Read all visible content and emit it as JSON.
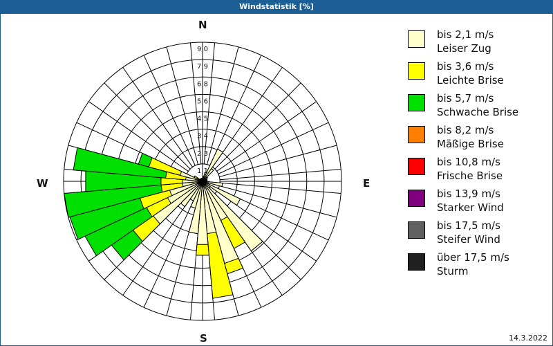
{
  "header": {
    "title": "Windstatistik [%]"
  },
  "compass": {
    "n": "N",
    "e": "E",
    "s": "S",
    "w": "W"
  },
  "footer": {
    "date": "14.3.2022"
  },
  "legend": [
    {
      "line1": "bis 2,1 m/s",
      "line2": "Leiser Zug",
      "color": "#ffffcc"
    },
    {
      "line1": "bis 3,6 m/s",
      "line2": "Leichte Brise",
      "color": "#ffff00"
    },
    {
      "line1": "bis 5,7 m/s",
      "line2": "Schwache Brise",
      "color": "#00e000"
    },
    {
      "line1": "bis 8,2 m/s",
      "line2": "Mäßige Brise",
      "color": "#ff8000"
    },
    {
      "line1": "bis 10,8 m/s",
      "line2": "Frische Brise",
      "color": "#ff0000"
    },
    {
      "line1": "bis 13,9 m/s",
      "line2": "Starker Wind",
      "color": "#800080"
    },
    {
      "line1": "bis 17,5 m/s",
      "line2": "Steifer Wind",
      "color": "#606060"
    },
    {
      "line1": "über 17,5 m/s",
      "line2": "Sturm",
      "color": "#202020"
    }
  ],
  "chart_data": {
    "type": "polar-stacked-bar",
    "title": "Windstatistik [%]",
    "radial_ticks": [
      "1,1",
      "2,3",
      "3,4",
      "4,5",
      "5,6",
      "6,8",
      "7,9",
      "9,0"
    ],
    "rmax": 9.0,
    "sector_width_deg": 10,
    "series": [
      "bis 2,1 m/s",
      "bis 3,6 m/s",
      "bis 5,7 m/s"
    ],
    "directions": [
      0,
      10,
      20,
      30,
      40,
      50,
      60,
      70,
      80,
      90,
      100,
      110,
      120,
      130,
      140,
      150,
      160,
      170,
      180,
      190,
      200,
      210,
      220,
      230,
      240,
      250,
      260,
      270,
      280,
      290,
      300,
      310,
      320,
      330,
      340,
      350
    ],
    "cumulative_values": [
      [
        0.2,
        0.2,
        0.2
      ],
      [
        0.3,
        0.3,
        0.3
      ],
      [
        0.6,
        0.6,
        0.6
      ],
      [
        2.3,
        2.3,
        2.3
      ],
      [
        1.0,
        1.0,
        1.0
      ],
      [
        0.4,
        0.4,
        0.4
      ],
      [
        0.3,
        0.3,
        0.3
      ],
      [
        0.3,
        0.3,
        0.3
      ],
      [
        0.3,
        0.3,
        0.3
      ],
      [
        0.3,
        0.3,
        0.3
      ],
      [
        1.3,
        1.3,
        1.3
      ],
      [
        0.4,
        0.4,
        0.4
      ],
      [
        2.7,
        2.7,
        2.7
      ],
      [
        0.6,
        0.6,
        0.6
      ],
      [
        5.5,
        5.5,
        5.5
      ],
      [
        2.8,
        4.8,
        4.8
      ],
      [
        5.5,
        6.2,
        6.2
      ],
      [
        3.4,
        7.6,
        7.6
      ],
      [
        4.1,
        4.8,
        4.8
      ],
      [
        3.4,
        3.4,
        3.4
      ],
      [
        1.8,
        1.8,
        1.8
      ],
      [
        1.4,
        1.4,
        1.4
      ],
      [
        2.0,
        2.0,
        2.0
      ],
      [
        3.9,
        5.5,
        7.2
      ],
      [
        2.5,
        4.0,
        8.4
      ],
      [
        2.2,
        4.2,
        8.9
      ],
      [
        1.3,
        2.7,
        9.0
      ],
      [
        1.3,
        2.7,
        7.6
      ],
      [
        1.1,
        2.4,
        8.4
      ],
      [
        1.5,
        3.6,
        4.3
      ],
      [
        0.4,
        0.6,
        0.6
      ],
      [
        0.2,
        0.2,
        0.2
      ],
      [
        0.2,
        0.2,
        0.2
      ],
      [
        0.2,
        0.2,
        0.2
      ],
      [
        0.2,
        0.2,
        0.2
      ],
      [
        0.2,
        0.2,
        0.2
      ]
    ]
  }
}
